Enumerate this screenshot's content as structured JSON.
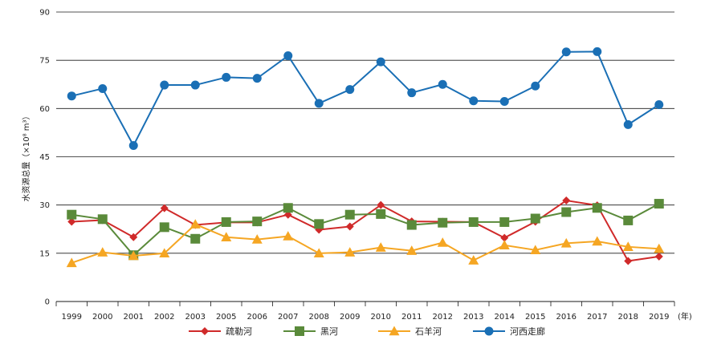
{
  "chart_data": {
    "type": "line",
    "title": "",
    "ylabel": "水资源总量（×10⁸ m³）",
    "x_unit_label": "(年)",
    "ylim": [
      0,
      90
    ],
    "yticks": [
      0,
      15,
      30,
      45,
      60,
      75,
      90
    ],
    "grid": true,
    "legend_position": "bottom",
    "categories": [
      "1999",
      "2000",
      "2001",
      "2002",
      "2003",
      "2005",
      "2006",
      "2007",
      "2008",
      "2009",
      "2010",
      "2011",
      "2012",
      "2013",
      "2014",
      "2015",
      "2016",
      "2017",
      "2018",
      "2019"
    ],
    "series": [
      {
        "name": "疏勒河",
        "color": "#d02a2a",
        "marker": "diamond",
        "values": [
          24.8,
          25.3,
          20.0,
          29.0,
          23.8,
          24.6,
          24.6,
          27.0,
          22.3,
          23.3,
          30.0,
          24.9,
          24.8,
          24.7,
          19.8,
          24.8,
          31.4,
          29.9,
          12.6,
          14.0
        ]
      },
      {
        "name": "黑河",
        "color": "#5a8a3a",
        "marker": "square",
        "values": [
          27.0,
          25.6,
          14.4,
          23.1,
          19.5,
          24.7,
          24.9,
          29.1,
          24.1,
          27.0,
          27.2,
          23.8,
          24.5,
          24.7,
          24.7,
          25.8,
          27.8,
          29.1,
          25.2,
          30.4
        ]
      },
      {
        "name": "石羊河",
        "color": "#f5a623",
        "marker": "triangle",
        "values": [
          12.0,
          15.3,
          14.2,
          15.0,
          24.0,
          20.0,
          19.3,
          20.3,
          15.0,
          15.3,
          16.8,
          15.8,
          18.3,
          12.8,
          17.5,
          16.0,
          18.1,
          18.7,
          17.0,
          16.4
        ]
      },
      {
        "name": "河西走廊",
        "color": "#1a6fb5",
        "marker": "circle",
        "values": [
          63.9,
          66.2,
          48.5,
          67.3,
          67.3,
          69.7,
          69.4,
          76.4,
          61.6,
          65.9,
          74.5,
          64.9,
          67.5,
          62.4,
          62.2,
          67.0,
          77.6,
          77.7,
          55.0,
          61.2
        ]
      }
    ]
  }
}
